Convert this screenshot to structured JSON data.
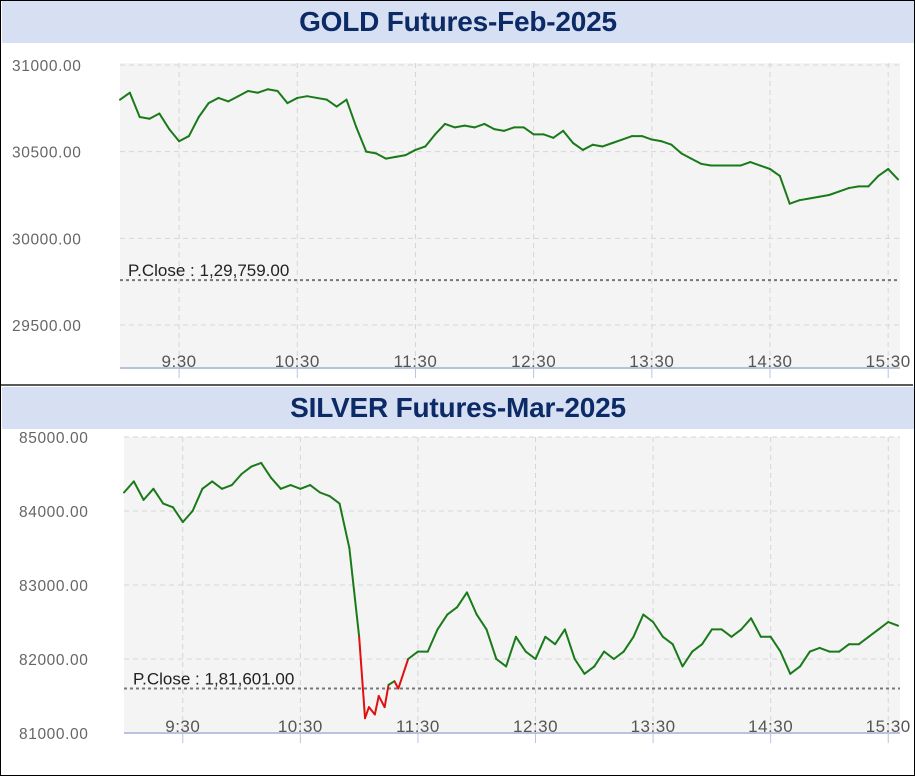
{
  "chart_data": [
    {
      "type": "line",
      "title": "GOLD Futures-Feb-2025",
      "xlabel": "",
      "ylabel": "",
      "x_ticks": [
        "9:30",
        "10:30",
        "11:30",
        "12:30",
        "13:30",
        "14:30",
        "15:30"
      ],
      "y_ticks": [
        "31000.00",
        "30500.00",
        "30000.00",
        "29500.00"
      ],
      "ylim": [
        29500,
        31000
      ],
      "xlim": [
        "09:00",
        "15:36"
      ],
      "grid": true,
      "reference_line": {
        "label": "P.Close : 1,29,759.00",
        "value": 29759
      },
      "colors": {
        "above": "#1a7a1a",
        "below": "#e01010",
        "ref": "#777777"
      },
      "series": [
        {
          "x": [
            "09:00",
            "09:05",
            "09:10",
            "09:15",
            "09:20",
            "09:25",
            "09:30",
            "09:35",
            "09:40",
            "09:45",
            "09:50",
            "09:55",
            "10:00",
            "10:05",
            "10:10",
            "10:15",
            "10:20",
            "10:25",
            "10:30",
            "10:35",
            "10:40",
            "10:45",
            "10:50",
            "10:55",
            "11:00",
            "11:05",
            "11:10",
            "11:15",
            "11:20",
            "11:25",
            "11:30",
            "11:35",
            "11:40",
            "11:45",
            "11:50",
            "11:55",
            "12:00",
            "12:05",
            "12:10",
            "12:15",
            "12:20",
            "12:25",
            "12:30",
            "12:35",
            "12:40",
            "12:45",
            "12:50",
            "12:55",
            "13:00",
            "13:05",
            "13:10",
            "13:15",
            "13:20",
            "13:25",
            "13:30",
            "13:35",
            "13:40",
            "13:45",
            "13:50",
            "13:55",
            "14:00",
            "14:05",
            "14:10",
            "14:15",
            "14:20",
            "14:25",
            "14:30",
            "14:35",
            "14:40",
            "14:45",
            "14:50",
            "14:55",
            "15:00",
            "15:05",
            "15:10",
            "15:15",
            "15:20",
            "15:25",
            "15:30",
            "15:35"
          ],
          "values": [
            30800,
            30840,
            30700,
            30690,
            30720,
            30630,
            30560,
            30590,
            30700,
            30780,
            30810,
            30790,
            30820,
            30850,
            30840,
            30860,
            30850,
            30780,
            30810,
            30820,
            30810,
            30800,
            30760,
            30800,
            30640,
            30500,
            30490,
            30460,
            30470,
            30480,
            30510,
            30530,
            30600,
            30660,
            30640,
            30650,
            30640,
            30660,
            30630,
            30620,
            30640,
            30640,
            30600,
            30600,
            30580,
            30620,
            30550,
            30510,
            30540,
            30530,
            30550,
            30570,
            30590,
            30590,
            30570,
            30560,
            30540,
            30490,
            30460,
            30430,
            30420,
            30420,
            30420,
            30420,
            30440,
            30420,
            30400,
            30360,
            30200,
            30220,
            30230,
            30240,
            30250,
            30270,
            30290,
            30300,
            30300,
            30360,
            30400,
            30340
          ]
        }
      ]
    },
    {
      "type": "line",
      "title": "SILVER Futures-Mar-2025",
      "xlabel": "",
      "ylabel": "",
      "x_ticks": [
        "9:30",
        "10:30",
        "11:30",
        "12:30",
        "13:30",
        "14:30",
        "15:30"
      ],
      "y_ticks": [
        "85000.00",
        "84000.00",
        "83000.00",
        "82000.00",
        "81000.00"
      ],
      "ylim": [
        81000,
        85000
      ],
      "xlim": [
        "09:00",
        "15:36"
      ],
      "grid": true,
      "reference_line": {
        "label": "P.Close : 1,81,601.00",
        "value": 81601
      },
      "colors": {
        "above": "#1a7a1a",
        "below": "#e01010",
        "ref": "#777777"
      },
      "series": [
        {
          "x": [
            "09:00",
            "09:05",
            "09:10",
            "09:15",
            "09:20",
            "09:25",
            "09:30",
            "09:35",
            "09:40",
            "09:45",
            "09:50",
            "09:55",
            "10:00",
            "10:05",
            "10:10",
            "10:15",
            "10:20",
            "10:25",
            "10:30",
            "10:35",
            "10:40",
            "10:45",
            "10:50",
            "10:55",
            "11:00",
            "11:03",
            "11:05",
            "11:08",
            "11:10",
            "11:13",
            "11:15",
            "11:18",
            "11:20",
            "11:25",
            "11:30",
            "11:35",
            "11:40",
            "11:45",
            "11:50",
            "11:55",
            "12:00",
            "12:05",
            "12:10",
            "12:15",
            "12:20",
            "12:25",
            "12:30",
            "12:35",
            "12:40",
            "12:45",
            "12:50",
            "12:55",
            "13:00",
            "13:05",
            "13:10",
            "13:15",
            "13:20",
            "13:25",
            "13:30",
            "13:35",
            "13:40",
            "13:45",
            "13:50",
            "13:55",
            "14:00",
            "14:05",
            "14:10",
            "14:15",
            "14:20",
            "14:25",
            "14:30",
            "14:35",
            "14:40",
            "14:45",
            "14:50",
            "14:55",
            "15:00",
            "15:05",
            "15:10",
            "15:15",
            "15:20",
            "15:25",
            "15:30",
            "15:35"
          ],
          "values": [
            84250,
            84400,
            84150,
            84300,
            84100,
            84050,
            83850,
            84000,
            84300,
            84400,
            84300,
            84350,
            84500,
            84600,
            84650,
            84450,
            84300,
            84350,
            84300,
            84350,
            84250,
            84200,
            84100,
            83500,
            82300,
            81200,
            81350,
            81250,
            81500,
            81350,
            81650,
            81700,
            81600,
            82000,
            82100,
            82100,
            82400,
            82600,
            82700,
            82900,
            82600,
            82400,
            82000,
            81900,
            82300,
            82100,
            82000,
            82300,
            82200,
            82400,
            82000,
            81800,
            81900,
            82100,
            82000,
            82100,
            82300,
            82600,
            82500,
            82300,
            82200,
            81900,
            82100,
            82200,
            82400,
            82400,
            82300,
            82400,
            82550,
            82300,
            82300,
            82100,
            81800,
            81900,
            82100,
            82150,
            82100,
            82100,
            82200,
            82200,
            82300,
            82400,
            82500,
            82450
          ]
        }
      ]
    }
  ]
}
